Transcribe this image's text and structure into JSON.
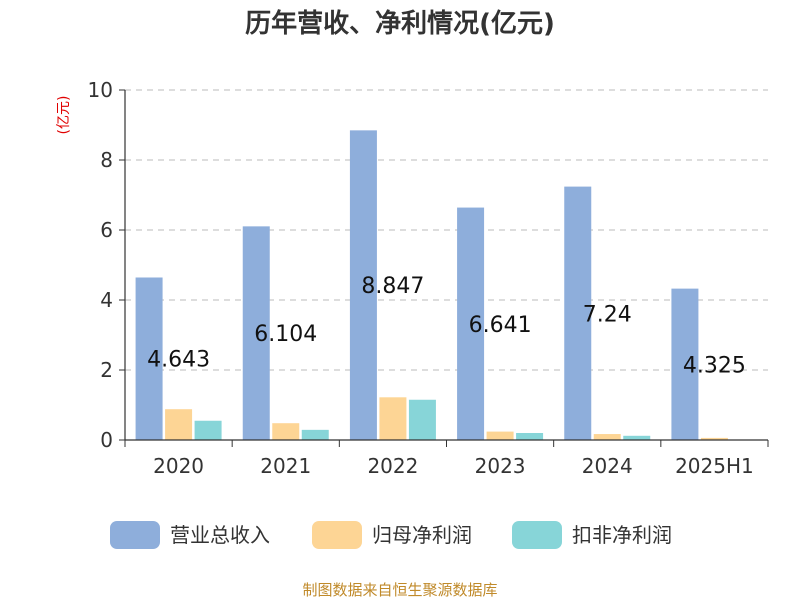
{
  "chart_data": {
    "type": "bar",
    "title": "历年营收、净利情况(亿元)",
    "ylabel": "(亿元)",
    "xlabel": "",
    "categories": [
      "2020",
      "2021",
      "2022",
      "2023",
      "2024",
      "2025H1"
    ],
    "ylim": [
      0,
      10
    ],
    "yticks": [
      0,
      2,
      4,
      6,
      8,
      10
    ],
    "grid": true,
    "legend_position": "bottom",
    "series": [
      {
        "name": "营业总收入",
        "color": "#8eaedb",
        "values": [
          4.643,
          6.104,
          8.847,
          6.641,
          7.24,
          4.325
        ],
        "labels": [
          "4.643",
          "6.104",
          "8.847",
          "6.641",
          "7.24",
          "4.325"
        ]
      },
      {
        "name": "归母净利润",
        "color": "#fdd595",
        "values": [
          0.88,
          0.48,
          1.22,
          0.24,
          0.17,
          0.06
        ]
      },
      {
        "name": "扣非净利润",
        "color": "#87d5d8",
        "values": [
          0.55,
          0.29,
          1.15,
          0.2,
          0.12,
          0.01
        ]
      }
    ]
  },
  "source": "制图数据来自恒生聚源数据库"
}
